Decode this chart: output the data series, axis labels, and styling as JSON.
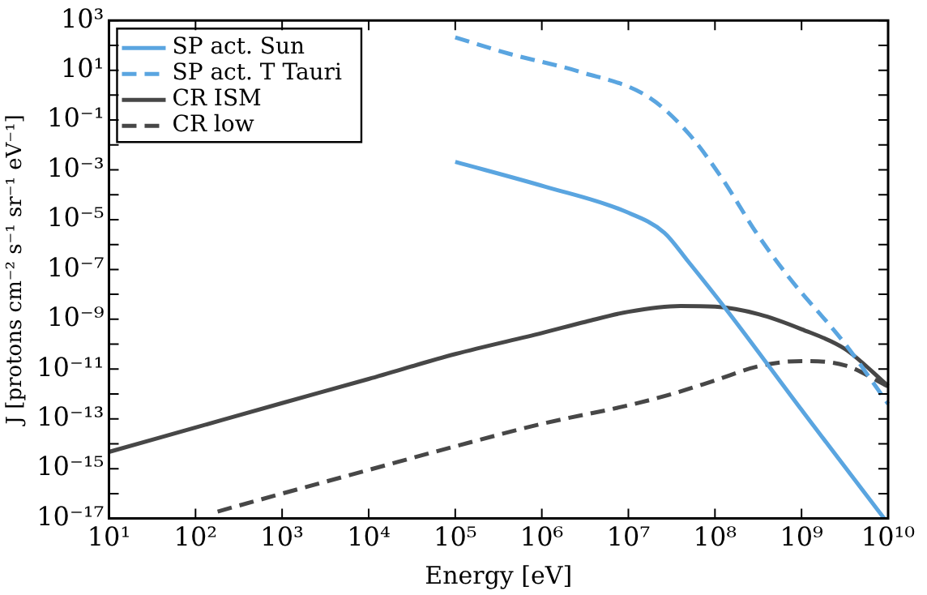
{
  "chart_data": {
    "type": "line",
    "xlabel": "Energy [eV]",
    "ylabel": "J [protons cm⁻² s⁻¹ sr⁻¹ eV⁻¹]",
    "log": "xy",
    "legend": "top left",
    "marker": "none",
    "grid": false,
    "xlim": [
      10,
      10000000000.0
    ],
    "xticks": [
      {
        "value": 10,
        "label": "10¹"
      },
      {
        "value": 100,
        "label": "10²"
      },
      {
        "value": 1000,
        "label": "10³"
      },
      {
        "value": 10000.0,
        "label": "10⁴"
      },
      {
        "value": 100000.0,
        "label": "10⁵"
      },
      {
        "value": 1000000.0,
        "label": "10⁶"
      },
      {
        "value": 10000000.0,
        "label": "10⁷"
      },
      {
        "value": 100000000.0,
        "label": "10⁸"
      },
      {
        "value": 1000000000.0,
        "label": "10⁹"
      },
      {
        "value": 10000000000.0,
        "label": "10¹⁰"
      }
    ],
    "ylim": [
      1e-17,
      1000
    ],
    "yticks": [
      {
        "value": 1e-17,
        "label": "10⁻¹⁷"
      },
      {
        "value": 1e-16,
        "label": null
      },
      {
        "value": 1e-15,
        "label": "10⁻¹⁵"
      },
      {
        "value": 1e-14,
        "label": null
      },
      {
        "value": 1e-13,
        "label": "10⁻¹³"
      },
      {
        "value": 1e-12,
        "label": null
      },
      {
        "value": 1e-11,
        "label": "10⁻¹¹"
      },
      {
        "value": 1e-10,
        "label": null
      },
      {
        "value": 1e-09,
        "label": "10⁻⁹"
      },
      {
        "value": 1e-08,
        "label": null
      },
      {
        "value": 1e-07,
        "label": "10⁻⁷"
      },
      {
        "value": 1e-06,
        "label": null
      },
      {
        "value": 1e-05,
        "label": "10⁻⁵"
      },
      {
        "value": 0.0001,
        "label": null
      },
      {
        "value": 0.001,
        "label": "10⁻³"
      },
      {
        "value": 0.01,
        "label": null
      },
      {
        "value": 0.1,
        "label": "10⁻¹"
      },
      {
        "value": 1,
        "label": null
      },
      {
        "value": 10,
        "label": "10¹"
      },
      {
        "value": 100,
        "label": null
      },
      {
        "value": 1000,
        "label": "10³"
      }
    ],
    "series": [
      {
        "name": "SP act. Sun",
        "color": "#5aa5e0",
        "line_style": "solid",
        "x": [
          100000.0,
          1100000.0,
          9300000.0,
          26000000.0,
          49000000.0,
          140000000.0,
          1000000000.0,
          9000000000.0
        ],
        "values": [
          0.0021,
          0.00021,
          2.1e-05,
          3e-06,
          2.1e-07,
          2.1e-09,
          2.3e-13,
          1e-17
        ]
      },
      {
        "name": "SP act. T Tauri",
        "color": "#5aa5e0",
        "line_style": "dashed",
        "x": [
          100000.0,
          410000.0,
          2800000.0,
          17000000.0,
          49000000.0,
          120000000.0,
          300000000.0,
          720000000.0,
          3200000000.0,
          10000000000.0
        ],
        "values": [
          210,
          47,
          8.5,
          0.85,
          0.03,
          0.00047,
          3e-06,
          4.7e-08,
          1e-10,
          4e-13
        ]
      },
      {
        "name": "CR ISM",
        "color": "#474747",
        "line_style": "solid",
        "x": [
          10,
          100,
          1000,
          10000.0,
          100000.0,
          1000000.0,
          3200000.0,
          10000000.0,
          40000000.0,
          100000000.0,
          320000000.0,
          1000000000.0,
          3200000000.0,
          10000000000.0
        ],
        "values": [
          4.7e-15,
          4.5e-14,
          4.3e-13,
          4e-12,
          4e-11,
          2.8e-10,
          7.9e-10,
          2e-09,
          3.4e-09,
          3.2e-09,
          1.6e-09,
          4e-10,
          6.3e-11,
          2.1e-12
        ]
      },
      {
        "name": "CR low",
        "color": "#474747",
        "line_style": "dashed",
        "x": [
          180,
          1000,
          10000.0,
          100000.0,
          1000000.0,
          10000000.0,
          32000000.0,
          100000000.0,
          320000000.0,
          1000000000.0,
          3200000000.0,
          10000000000.0
        ],
        "values": [
          1.9e-17,
          1e-16,
          8.9e-16,
          7.9e-15,
          6.3e-14,
          3.5e-13,
          1e-12,
          3.5e-12,
          1.3e-11,
          2.1e-11,
          1.4e-11,
          2e-12
        ]
      }
    ]
  }
}
